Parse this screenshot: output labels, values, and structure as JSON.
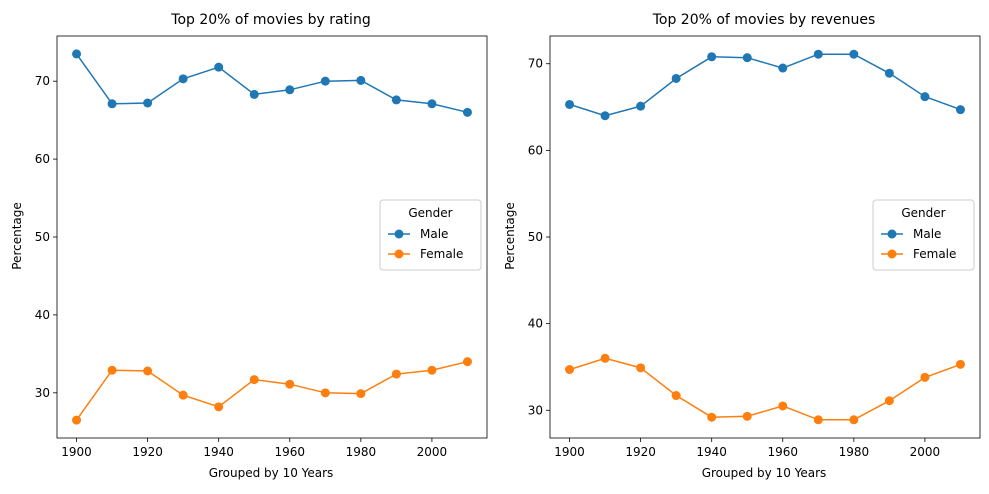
{
  "chart_data": [
    {
      "type": "line",
      "title": "Top 20% of movies by rating",
      "xlabel": "Grouped by 10 Years",
      "ylabel": "Percentage",
      "x": [
        1900,
        1910,
        1920,
        1930,
        1940,
        1950,
        1960,
        1970,
        1980,
        1990,
        2000,
        2010
      ],
      "xticks": [
        1900,
        1920,
        1940,
        1960,
        1980,
        2000
      ],
      "yticks": [
        30,
        40,
        50,
        60,
        70
      ],
      "xlim": [
        1894.5,
        2015.5
      ],
      "ylim": [
        24.2,
        75.8
      ],
      "legend": {
        "title": "Gender",
        "position": "center-right"
      },
      "series": [
        {
          "name": "Male",
          "color": "#1f77b4",
          "values": [
            73.5,
            67.1,
            67.2,
            70.3,
            71.8,
            68.3,
            68.9,
            70.0,
            70.1,
            67.6,
            67.1,
            66.0
          ]
        },
        {
          "name": "Female",
          "color": "#ff7f0e",
          "values": [
            26.5,
            32.9,
            32.8,
            29.7,
            28.2,
            31.7,
            31.1,
            30.0,
            29.9,
            32.4,
            32.9,
            34.0
          ]
        }
      ]
    },
    {
      "type": "line",
      "title": "Top 20% of movies by revenues",
      "xlabel": "Grouped by 10 Years",
      "ylabel": "Percentage",
      "x": [
        1900,
        1910,
        1920,
        1930,
        1940,
        1950,
        1960,
        1970,
        1980,
        1990,
        2000,
        2010
      ],
      "xticks": [
        1900,
        1920,
        1940,
        1960,
        1980,
        2000
      ],
      "yticks": [
        30,
        40,
        50,
        60,
        70
      ],
      "xlim": [
        1894.5,
        2015.5
      ],
      "ylim": [
        26.8,
        73.2
      ],
      "legend": {
        "title": "Gender",
        "position": "center-right"
      },
      "series": [
        {
          "name": "Male",
          "color": "#1f77b4",
          "values": [
            65.3,
            64.0,
            65.1,
            68.3,
            70.8,
            70.7,
            69.5,
            71.1,
            71.1,
            68.9,
            66.2,
            64.7
          ]
        },
        {
          "name": "Female",
          "color": "#ff7f0e",
          "values": [
            34.7,
            36.0,
            34.9,
            31.7,
            29.2,
            29.3,
            30.5,
            28.9,
            28.9,
            31.1,
            33.8,
            35.3
          ]
        }
      ]
    }
  ]
}
